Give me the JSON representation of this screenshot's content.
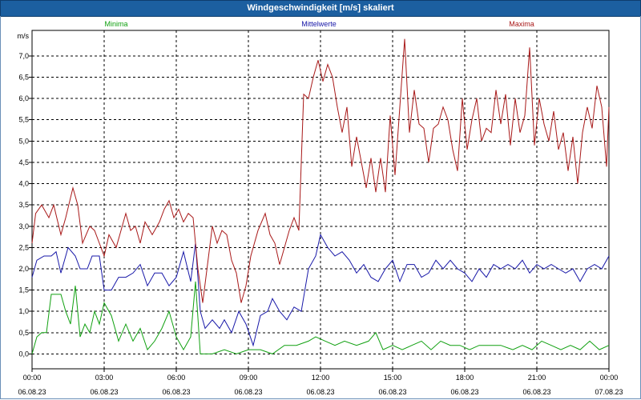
{
  "window": {
    "title": "Windgeschwindigkeit [m/s] skaliert"
  },
  "chart_data": {
    "type": "line",
    "title": "Windgeschwindigkeit [m/s] skaliert",
    "ylabel": "m/s",
    "ylim": [
      -0.35,
      7.6
    ],
    "xlim": [
      0,
      24
    ],
    "y_ticks": [
      "0,0",
      "0,5",
      "1,0",
      "1,5",
      "2,0",
      "2,5",
      "3,0",
      "3,5",
      "4,0",
      "4,5",
      "5,0",
      "5,5",
      "6,0",
      "6,5",
      "7,0"
    ],
    "x_ticks": [
      {
        "time": "00:00",
        "date": "06.08.23"
      },
      {
        "time": "03:00",
        "date": "06.08.23"
      },
      {
        "time": "06:00",
        "date": "06.08.23"
      },
      {
        "time": "09:00",
        "date": "06.08.23"
      },
      {
        "time": "12:00",
        "date": "06.08.23"
      },
      {
        "time": "15:00",
        "date": "06.08.23"
      },
      {
        "time": "18:00",
        "date": "06.08.23"
      },
      {
        "time": "21:00",
        "date": "06.08.23"
      },
      {
        "time": "00:00",
        "date": "07.08.23"
      }
    ],
    "grid": true,
    "legend_position": "top",
    "series": [
      {
        "name": "Minima",
        "color": "#10a010",
        "points": [
          [
            0,
            0.0
          ],
          [
            0.2,
            0.4
          ],
          [
            0.4,
            0.5
          ],
          [
            0.6,
            0.5
          ],
          [
            0.8,
            1.4
          ],
          [
            1,
            1.4
          ],
          [
            1.2,
            1.4
          ],
          [
            1.4,
            1.0
          ],
          [
            1.6,
            0.7
          ],
          [
            1.8,
            1.6
          ],
          [
            2,
            0.4
          ],
          [
            2.2,
            0.7
          ],
          [
            2.4,
            0.5
          ],
          [
            2.6,
            1.0
          ],
          [
            2.8,
            0.7
          ],
          [
            3.0,
            1.2
          ],
          [
            3.3,
            0.9
          ],
          [
            3.6,
            0.3
          ],
          [
            3.9,
            0.7
          ],
          [
            4.2,
            0.3
          ],
          [
            4.5,
            0.6
          ],
          [
            4.8,
            0.1
          ],
          [
            5.1,
            0.3
          ],
          [
            5.4,
            0.6
          ],
          [
            5.7,
            1.0
          ],
          [
            6.0,
            0.4
          ],
          [
            6.3,
            0.1
          ],
          [
            6.6,
            0.4
          ],
          [
            6.8,
            1.7
          ],
          [
            7.0,
            0.0
          ],
          [
            7.5,
            0.0
          ],
          [
            8.0,
            0.1
          ],
          [
            8.5,
            0.0
          ],
          [
            9.0,
            0.1
          ],
          [
            9.5,
            0.1
          ],
          [
            10.0,
            0.0
          ],
          [
            10.5,
            0.2
          ],
          [
            11.0,
            0.2
          ],
          [
            11.5,
            0.3
          ],
          [
            11.8,
            0.4
          ],
          [
            12.2,
            0.3
          ],
          [
            12.6,
            0.2
          ],
          [
            13.0,
            0.3
          ],
          [
            13.5,
            0.2
          ],
          [
            14.0,
            0.3
          ],
          [
            14.3,
            0.5
          ],
          [
            14.6,
            0.1
          ],
          [
            15.0,
            0.2
          ],
          [
            15.4,
            0.1
          ],
          [
            15.8,
            0.2
          ],
          [
            16.2,
            0.3
          ],
          [
            16.6,
            0.1
          ],
          [
            17.0,
            0.3
          ],
          [
            17.4,
            0.2
          ],
          [
            17.8,
            0.2
          ],
          [
            18.2,
            0.1
          ],
          [
            18.6,
            0.2
          ],
          [
            19.0,
            0.2
          ],
          [
            19.5,
            0.2
          ],
          [
            20.0,
            0.1
          ],
          [
            20.4,
            0.2
          ],
          [
            20.8,
            0.1
          ],
          [
            21.2,
            0.3
          ],
          [
            21.6,
            0.2
          ],
          [
            22.0,
            0.1
          ],
          [
            22.4,
            0.2
          ],
          [
            22.8,
            0.1
          ],
          [
            23.2,
            0.3
          ],
          [
            23.6,
            0.1
          ],
          [
            24.0,
            0.2
          ]
        ]
      },
      {
        "name": "Mittelwerte",
        "color": "#1818a8",
        "points": [
          [
            0,
            1.8
          ],
          [
            0.2,
            2.2
          ],
          [
            0.5,
            2.3
          ],
          [
            0.8,
            2.3
          ],
          [
            1.0,
            2.4
          ],
          [
            1.2,
            1.9
          ],
          [
            1.5,
            2.5
          ],
          [
            1.8,
            2.3
          ],
          [
            2.0,
            2.0
          ],
          [
            2.3,
            2.0
          ],
          [
            2.5,
            2.3
          ],
          [
            2.8,
            2.3
          ],
          [
            3.0,
            1.5
          ],
          [
            3.3,
            1.5
          ],
          [
            3.6,
            1.8
          ],
          [
            3.9,
            1.8
          ],
          [
            4.2,
            1.9
          ],
          [
            4.5,
            2.1
          ],
          [
            4.8,
            1.6
          ],
          [
            5.1,
            1.9
          ],
          [
            5.4,
            1.9
          ],
          [
            5.7,
            1.6
          ],
          [
            6.0,
            1.8
          ],
          [
            6.3,
            2.4
          ],
          [
            6.6,
            1.7
          ],
          [
            6.8,
            2.6
          ],
          [
            7.0,
            1.0
          ],
          [
            7.2,
            0.6
          ],
          [
            7.5,
            0.8
          ],
          [
            7.8,
            0.6
          ],
          [
            8.0,
            0.8
          ],
          [
            8.3,
            0.5
          ],
          [
            8.6,
            1.0
          ],
          [
            8.9,
            0.7
          ],
          [
            9.2,
            0.2
          ],
          [
            9.5,
            0.9
          ],
          [
            9.8,
            1.0
          ],
          [
            10.0,
            1.3
          ],
          [
            10.3,
            1.0
          ],
          [
            10.6,
            0.8
          ],
          [
            10.9,
            1.1
          ],
          [
            11.2,
            1.0
          ],
          [
            11.5,
            2.0
          ],
          [
            11.8,
            2.3
          ],
          [
            12.0,
            2.8
          ],
          [
            12.3,
            2.5
          ],
          [
            12.6,
            2.3
          ],
          [
            12.9,
            2.4
          ],
          [
            13.2,
            2.2
          ],
          [
            13.5,
            1.9
          ],
          [
            13.8,
            2.1
          ],
          [
            14.1,
            1.8
          ],
          [
            14.4,
            1.7
          ],
          [
            14.7,
            2.0
          ],
          [
            15.0,
            2.2
          ],
          [
            15.3,
            1.7
          ],
          [
            15.6,
            2.1
          ],
          [
            15.9,
            2.1
          ],
          [
            16.2,
            1.8
          ],
          [
            16.5,
            1.9
          ],
          [
            16.8,
            2.2
          ],
          [
            17.1,
            2.0
          ],
          [
            17.4,
            2.2
          ],
          [
            17.7,
            2.0
          ],
          [
            18.0,
            1.9
          ],
          [
            18.3,
            1.7
          ],
          [
            18.6,
            2.0
          ],
          [
            18.9,
            1.8
          ],
          [
            19.2,
            2.1
          ],
          [
            19.5,
            2.0
          ],
          [
            19.8,
            2.1
          ],
          [
            20.1,
            2.0
          ],
          [
            20.4,
            2.2
          ],
          [
            20.7,
            1.9
          ],
          [
            21.0,
            2.1
          ],
          [
            21.3,
            2.0
          ],
          [
            21.6,
            2.1
          ],
          [
            21.9,
            2.0
          ],
          [
            22.2,
            1.9
          ],
          [
            22.5,
            2.0
          ],
          [
            22.8,
            1.7
          ],
          [
            23.1,
            2.0
          ],
          [
            23.4,
            2.1
          ],
          [
            23.7,
            2.0
          ],
          [
            24.0,
            2.3
          ]
        ]
      },
      {
        "name": "Maxima",
        "color": "#a81818",
        "points": [
          [
            0,
            2.6
          ],
          [
            0.15,
            3.3
          ],
          [
            0.4,
            3.5
          ],
          [
            0.7,
            3.2
          ],
          [
            0.9,
            3.5
          ],
          [
            1.2,
            2.8
          ],
          [
            1.4,
            3.2
          ],
          [
            1.7,
            3.9
          ],
          [
            1.9,
            3.5
          ],
          [
            2.1,
            2.6
          ],
          [
            2.4,
            3.0
          ],
          [
            2.6,
            2.9
          ],
          [
            2.8,
            2.6
          ],
          [
            3.0,
            2.3
          ],
          [
            3.2,
            2.8
          ],
          [
            3.5,
            2.5
          ],
          [
            3.7,
            2.9
          ],
          [
            3.9,
            3.3
          ],
          [
            4.1,
            2.9
          ],
          [
            4.3,
            3.0
          ],
          [
            4.5,
            2.6
          ],
          [
            4.7,
            3.1
          ],
          [
            5.0,
            2.8
          ],
          [
            5.3,
            3.1
          ],
          [
            5.5,
            3.4
          ],
          [
            5.7,
            3.6
          ],
          [
            5.9,
            3.2
          ],
          [
            6.1,
            3.4
          ],
          [
            6.3,
            3.1
          ],
          [
            6.5,
            3.3
          ],
          [
            6.7,
            3.2
          ],
          [
            6.9,
            2.0
          ],
          [
            7.1,
            1.2
          ],
          [
            7.3,
            2.1
          ],
          [
            7.5,
            3.0
          ],
          [
            7.7,
            2.6
          ],
          [
            7.9,
            2.9
          ],
          [
            8.1,
            2.8
          ],
          [
            8.3,
            2.2
          ],
          [
            8.5,
            1.9
          ],
          [
            8.7,
            1.2
          ],
          [
            8.9,
            1.6
          ],
          [
            9.1,
            2.3
          ],
          [
            9.4,
            2.9
          ],
          [
            9.7,
            3.3
          ],
          [
            9.9,
            2.8
          ],
          [
            10.1,
            2.6
          ],
          [
            10.3,
            2.1
          ],
          [
            10.5,
            2.5
          ],
          [
            10.7,
            2.9
          ],
          [
            10.9,
            3.2
          ],
          [
            11.1,
            2.9
          ],
          [
            11.3,
            6.1
          ],
          [
            11.5,
            6.0
          ],
          [
            11.7,
            6.5
          ],
          [
            11.9,
            6.9
          ],
          [
            12.1,
            6.4
          ],
          [
            12.3,
            6.8
          ],
          [
            12.5,
            6.5
          ],
          [
            12.7,
            5.8
          ],
          [
            12.9,
            5.2
          ],
          [
            13.1,
            5.8
          ],
          [
            13.3,
            4.4
          ],
          [
            13.5,
            5.1
          ],
          [
            13.7,
            4.5
          ],
          [
            13.9,
            3.9
          ],
          [
            14.1,
            4.6
          ],
          [
            14.3,
            3.8
          ],
          [
            14.5,
            4.6
          ],
          [
            14.7,
            3.8
          ],
          [
            14.9,
            5.6
          ],
          [
            15.1,
            4.2
          ],
          [
            15.3,
            5.8
          ],
          [
            15.5,
            7.4
          ],
          [
            15.7,
            5.2
          ],
          [
            15.9,
            6.2
          ],
          [
            16.1,
            5.4
          ],
          [
            16.3,
            5.3
          ],
          [
            16.5,
            4.5
          ],
          [
            16.7,
            5.3
          ],
          [
            16.9,
            5.4
          ],
          [
            17.1,
            5.8
          ],
          [
            17.3,
            5.5
          ],
          [
            17.5,
            4.8
          ],
          [
            17.7,
            4.3
          ],
          [
            17.9,
            6.0
          ],
          [
            18.1,
            4.8
          ],
          [
            18.3,
            5.5
          ],
          [
            18.5,
            6.0
          ],
          [
            18.7,
            5.0
          ],
          [
            18.9,
            5.3
          ],
          [
            19.1,
            5.2
          ],
          [
            19.3,
            6.2
          ],
          [
            19.5,
            5.4
          ],
          [
            19.7,
            6.1
          ],
          [
            19.9,
            4.9
          ],
          [
            20.1,
            6.0
          ],
          [
            20.3,
            5.2
          ],
          [
            20.5,
            5.6
          ],
          [
            20.7,
            7.2
          ],
          [
            20.9,
            4.9
          ],
          [
            21.1,
            6.0
          ],
          [
            21.3,
            5.4
          ],
          [
            21.5,
            5.0
          ],
          [
            21.7,
            5.7
          ],
          [
            21.9,
            4.8
          ],
          [
            22.1,
            5.2
          ],
          [
            22.3,
            4.3
          ],
          [
            22.5,
            5.1
          ],
          [
            22.7,
            4.0
          ],
          [
            22.9,
            5.2
          ],
          [
            23.1,
            5.8
          ],
          [
            23.3,
            5.3
          ],
          [
            23.5,
            6.3
          ],
          [
            23.7,
            5.8
          ],
          [
            23.9,
            4.4
          ],
          [
            24.0,
            5.8
          ]
        ]
      }
    ]
  }
}
